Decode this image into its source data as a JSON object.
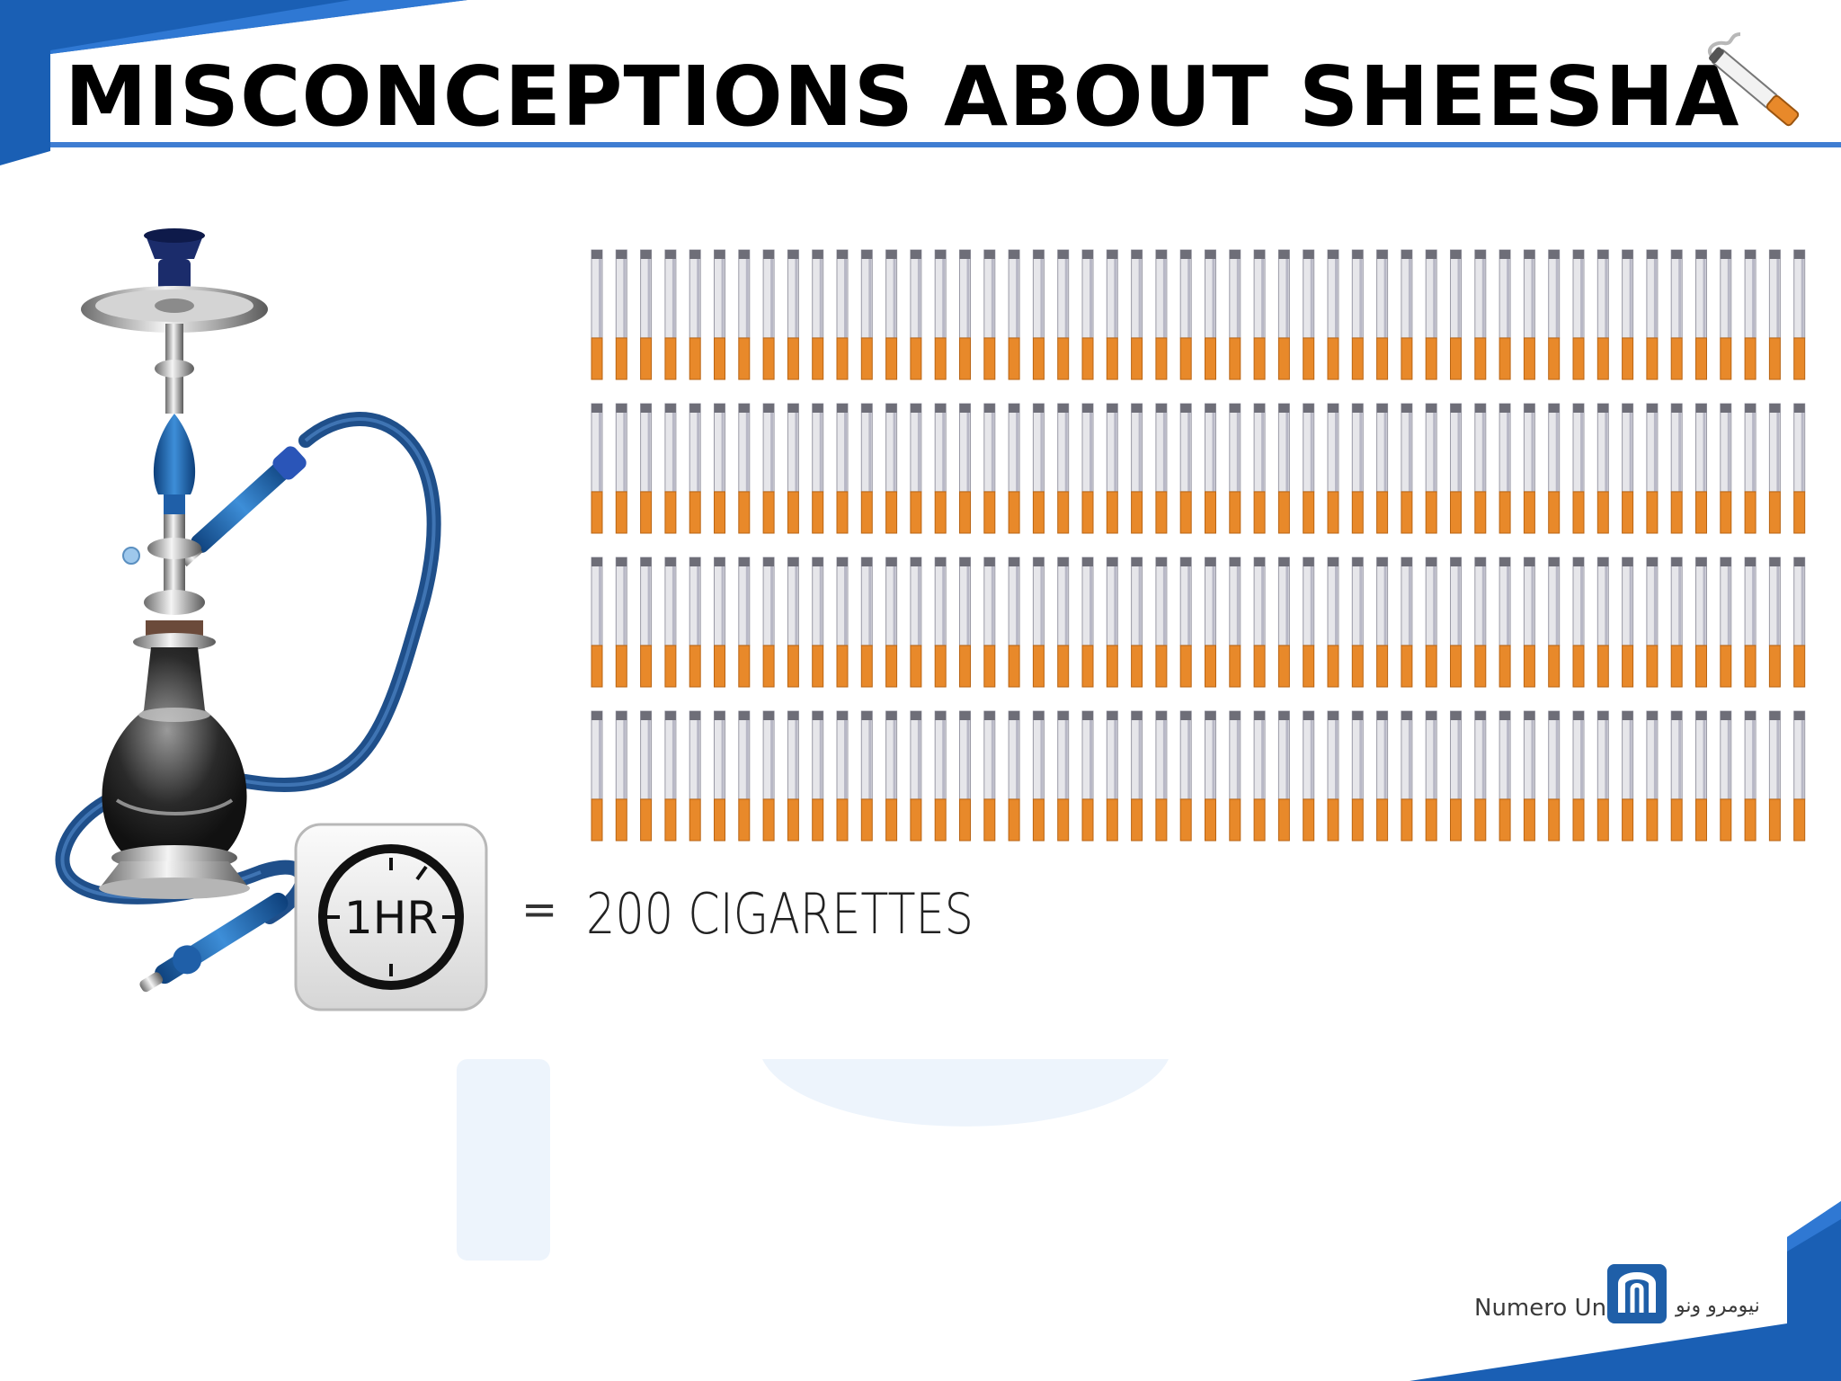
{
  "slide": {
    "title": "MISCONCEPTIONS ABOUT SHEESHA",
    "timer_label": "1HR",
    "equals_sign": "=",
    "comparison_text": "200 CIGARETTES",
    "cigarette_grid": {
      "rows": 4,
      "per_row": 50,
      "total": 200
    },
    "logo": {
      "english": "Numero Uno",
      "arabic": "نيومرو ونو"
    }
  },
  "colors": {
    "accent_blue": "#3f7dd2",
    "corner_blue": "#1a5fb4",
    "cigarette_filter": "#e8892a",
    "cigarette_paper": "#e6e6ea",
    "hookah_blue": "#1f5fa8"
  },
  "icons": [
    "cigarette-icon",
    "hookah-icon",
    "clock-icon",
    "logo-mark-icon"
  ]
}
